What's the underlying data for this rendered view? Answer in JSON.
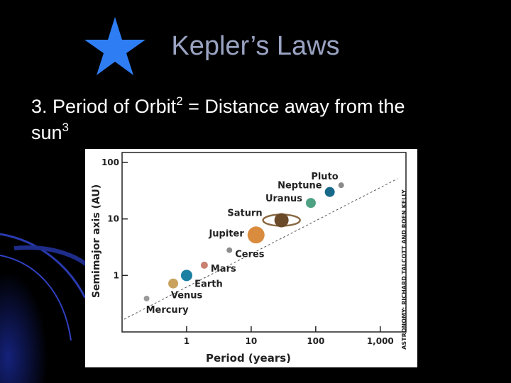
{
  "slide": {
    "title": "Kepler’s Laws",
    "body": {
      "line1": "3. Period of Orbit",
      "sup1": "2",
      "line1b": " = Distance away from the",
      "line2": "sun",
      "sup2": "3"
    }
  },
  "chart_data": {
    "type": "scatter",
    "x_label": "Period (years)",
    "y_label": "Semimajor axis (AU)",
    "credit": "ASTRONOMY: RICHARD TALCOTT AND ROEN KELLY",
    "log_x": true,
    "log_y": true,
    "xlim": [
      0.1,
      2500
    ],
    "ylim": [
      0.1,
      150
    ],
    "xticks": [
      1,
      10,
      100,
      {
        "value": 1000,
        "label": "1,000"
      }
    ],
    "yticks": [
      1,
      10,
      100
    ],
    "labels": [
      "Mercury",
      "Venus",
      "Earth",
      "Mars",
      "Ceres",
      "Jupiter",
      "Saturn",
      "Uranus",
      "Neptune",
      "Pluto"
    ],
    "x": [
      0.24,
      0.62,
      1,
      1.88,
      4.6,
      11.9,
      29.5,
      84,
      165,
      248
    ],
    "values": [
      0.39,
      0.72,
      1,
      1.52,
      2.8,
      5.2,
      9.5,
      19.2,
      30,
      39.5
    ],
    "colors": [
      "#9a9a9a",
      "#c9a25e",
      "#1b80a2",
      "#c98070",
      "#8c8c8c",
      "#d98c3e",
      "#6b4a2a",
      "#4ea283",
      "#17698a",
      "#8a8a8a"
    ],
    "marker_sizes": [
      4,
      7,
      8,
      5,
      4,
      12,
      10,
      7,
      7,
      4
    ]
  }
}
